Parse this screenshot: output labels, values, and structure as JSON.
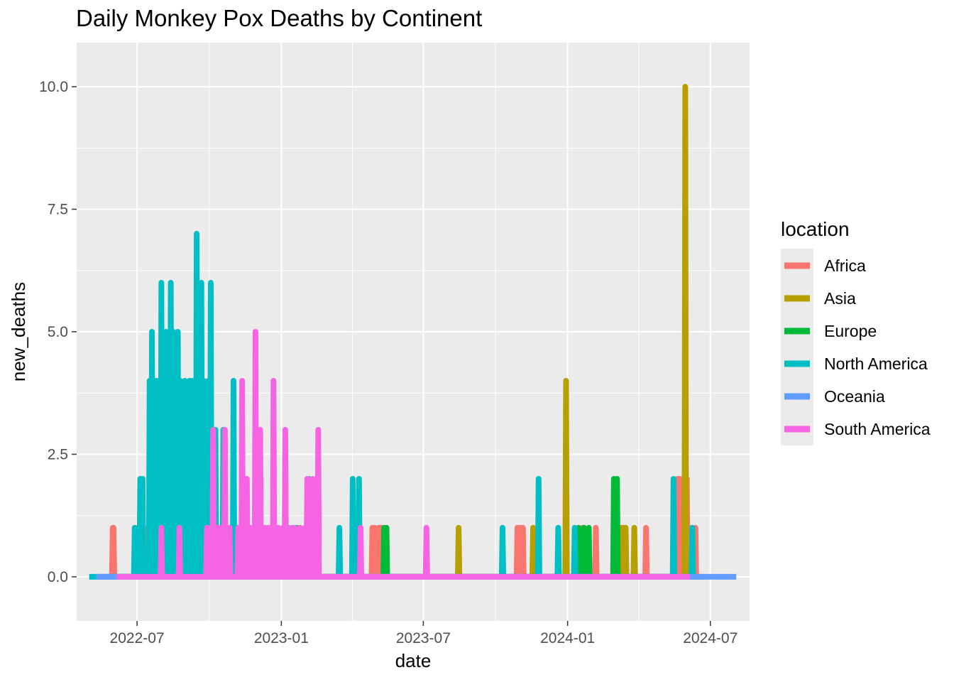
{
  "chart_data": {
    "type": "line",
    "title": "Daily Monkey Pox Deaths by Continent",
    "xlabel": "date",
    "ylabel": "new_deaths",
    "x_type": "date",
    "xlim": [
      "2022-04-15",
      "2024-08-20"
    ],
    "ylim": [
      -0.9,
      10.9
    ],
    "x_ticks": [
      {
        "date": "2022-07-01",
        "label": "2022-07"
      },
      {
        "date": "2023-01-01",
        "label": "2023-01"
      },
      {
        "date": "2023-07-01",
        "label": "2023-07"
      },
      {
        "date": "2024-01-01",
        "label": "2024-01"
      },
      {
        "date": "2024-07-01",
        "label": "2024-07"
      }
    ],
    "y_ticks": [
      {
        "value": 0,
        "label": "0.0"
      },
      {
        "value": 2.5,
        "label": "2.5"
      },
      {
        "value": 5,
        "label": "5.0"
      },
      {
        "value": 7.5,
        "label": "7.5"
      },
      {
        "value": 10,
        "label": "10.0"
      }
    ],
    "grid": true,
    "legend": {
      "title": "location",
      "position": "right"
    },
    "series": [
      {
        "name": "Africa",
        "color": "#F8766D",
        "range": [
          "2022-05-20",
          "2024-06-22"
        ],
        "spikes": [
          [
            "2022-05-31",
            1
          ],
          [
            "2022-06-01",
            1
          ],
          [
            "2022-06-29",
            1
          ],
          [
            "2022-07-10",
            1
          ],
          [
            "2023-01-24",
            1
          ],
          [
            "2023-04-27",
            1
          ],
          [
            "2023-04-30",
            1
          ],
          [
            "2023-05-05",
            1
          ],
          [
            "2023-05-08",
            1
          ],
          [
            "2023-10-29",
            1
          ],
          [
            "2023-11-02",
            1
          ],
          [
            "2023-11-05",
            1
          ],
          [
            "2024-01-20",
            1
          ],
          [
            "2024-02-06",
            1
          ],
          [
            "2024-03-12",
            1
          ],
          [
            "2024-04-10",
            1
          ],
          [
            "2024-05-20",
            2
          ],
          [
            "2024-05-23",
            2
          ],
          [
            "2024-05-28",
            1
          ],
          [
            "2024-06-01",
            2
          ],
          [
            "2024-06-04",
            1
          ],
          [
            "2024-06-12",
            1
          ]
        ]
      },
      {
        "name": "Asia",
        "color": "#B79F00",
        "range": [
          "2022-06-05",
          "2024-06-20"
        ],
        "spikes": [
          [
            "2023-08-15",
            1
          ],
          [
            "2023-11-18",
            1
          ],
          [
            "2023-12-30",
            4
          ],
          [
            "2024-03-10",
            1
          ],
          [
            "2024-03-15",
            1
          ],
          [
            "2024-03-26",
            1
          ],
          [
            "2024-05-30",
            10
          ]
        ]
      },
      {
        "name": "Europe",
        "color": "#00BA38",
        "range": [
          "2022-05-25",
          "2024-06-15"
        ],
        "spikes": [
          [
            "2022-07-08",
            1
          ],
          [
            "2022-08-10",
            1
          ],
          [
            "2022-09-18",
            1
          ],
          [
            "2022-11-05",
            1
          ],
          [
            "2023-01-20",
            1
          ],
          [
            "2023-05-12",
            1
          ],
          [
            "2023-05-15",
            1
          ],
          [
            "2024-01-15",
            1
          ],
          [
            "2024-01-22",
            1
          ],
          [
            "2024-01-28",
            1
          ],
          [
            "2024-02-29",
            2
          ],
          [
            "2024-03-04",
            2
          ]
        ]
      },
      {
        "name": "North America",
        "color": "#00BFC4",
        "range": [
          "2022-05-01",
          "2024-06-10"
        ],
        "spikes": [
          [
            "2022-06-28",
            1
          ],
          [
            "2022-07-05",
            2
          ],
          [
            "2022-07-08",
            2
          ],
          [
            "2022-07-17",
            4
          ],
          [
            "2022-07-20",
            5
          ],
          [
            "2022-07-23",
            4
          ],
          [
            "2022-07-26",
            4
          ],
          [
            "2022-08-01",
            6
          ],
          [
            "2022-08-04",
            4
          ],
          [
            "2022-08-07",
            5
          ],
          [
            "2022-08-10",
            4
          ],
          [
            "2022-08-13",
            6
          ],
          [
            "2022-08-16",
            5
          ],
          [
            "2022-08-19",
            4
          ],
          [
            "2022-08-22",
            5
          ],
          [
            "2022-08-25",
            4
          ],
          [
            "2022-08-28",
            3
          ],
          [
            "2022-08-31",
            4
          ],
          [
            "2022-09-03",
            3
          ],
          [
            "2022-09-06",
            4
          ],
          [
            "2022-09-09",
            4
          ],
          [
            "2022-09-12",
            3
          ],
          [
            "2022-09-15",
            7
          ],
          [
            "2022-09-18",
            4
          ],
          [
            "2022-09-21",
            6
          ],
          [
            "2022-09-24",
            4
          ],
          [
            "2022-09-27",
            1
          ],
          [
            "2022-09-30",
            4
          ],
          [
            "2022-10-03",
            6
          ],
          [
            "2022-10-06",
            1
          ],
          [
            "2022-10-09",
            3
          ],
          [
            "2022-10-14",
            1
          ],
          [
            "2022-10-19",
            3
          ],
          [
            "2022-10-23",
            1
          ],
          [
            "2022-10-29",
            1
          ],
          [
            "2022-11-01",
            4
          ],
          [
            "2022-11-03",
            1
          ],
          [
            "2022-11-10",
            1
          ],
          [
            "2022-12-01",
            1
          ],
          [
            "2022-12-10",
            1
          ],
          [
            "2023-01-10",
            1
          ],
          [
            "2023-02-05",
            2
          ],
          [
            "2023-03-16",
            1
          ],
          [
            "2023-04-02",
            2
          ],
          [
            "2023-04-10",
            2
          ],
          [
            "2023-10-10",
            1
          ],
          [
            "2023-11-25",
            2
          ],
          [
            "2023-12-20",
            1
          ],
          [
            "2024-01-10",
            1
          ],
          [
            "2024-05-15",
            2
          ],
          [
            "2024-06-08",
            1
          ]
        ]
      },
      {
        "name": "Oceania",
        "color": "#619CFF",
        "range": [
          "2022-05-10",
          "2024-08-03"
        ],
        "spikes": []
      },
      {
        "name": "South America",
        "color": "#F564E3",
        "range": [
          "2022-06-05",
          "2024-06-05"
        ],
        "spikes": [
          [
            "2022-08-01",
            1
          ],
          [
            "2022-08-24",
            1
          ],
          [
            "2022-09-28",
            1
          ],
          [
            "2022-10-03",
            1
          ],
          [
            "2022-10-06",
            3
          ],
          [
            "2022-10-09",
            1
          ],
          [
            "2022-10-12",
            1
          ],
          [
            "2022-10-15",
            1
          ],
          [
            "2022-10-18",
            1
          ],
          [
            "2022-10-21",
            3
          ],
          [
            "2022-10-24",
            1
          ],
          [
            "2022-10-27",
            1
          ],
          [
            "2022-11-07",
            1
          ],
          [
            "2022-11-12",
            4
          ],
          [
            "2022-11-15",
            1
          ],
          [
            "2022-11-18",
            2
          ],
          [
            "2022-11-22",
            1
          ],
          [
            "2022-11-26",
            1
          ],
          [
            "2022-11-29",
            5
          ],
          [
            "2022-12-02",
            1
          ],
          [
            "2022-12-05",
            3
          ],
          [
            "2022-12-08",
            1
          ],
          [
            "2022-12-11",
            1
          ],
          [
            "2022-12-15",
            1
          ],
          [
            "2022-12-19",
            1
          ],
          [
            "2022-12-22",
            4
          ],
          [
            "2022-12-25",
            1
          ],
          [
            "2022-12-28",
            1
          ],
          [
            "2023-01-03",
            1
          ],
          [
            "2023-01-06",
            3
          ],
          [
            "2023-01-09",
            1
          ],
          [
            "2023-01-15",
            1
          ],
          [
            "2023-01-18",
            1
          ],
          [
            "2023-01-25",
            1
          ],
          [
            "2023-01-31",
            1
          ],
          [
            "2023-02-03",
            2
          ],
          [
            "2023-02-06",
            1
          ],
          [
            "2023-02-10",
            2
          ],
          [
            "2023-02-14",
            1
          ],
          [
            "2023-02-17",
            3
          ],
          [
            "2023-04-12",
            1
          ],
          [
            "2023-07-05",
            1
          ]
        ]
      }
    ]
  }
}
